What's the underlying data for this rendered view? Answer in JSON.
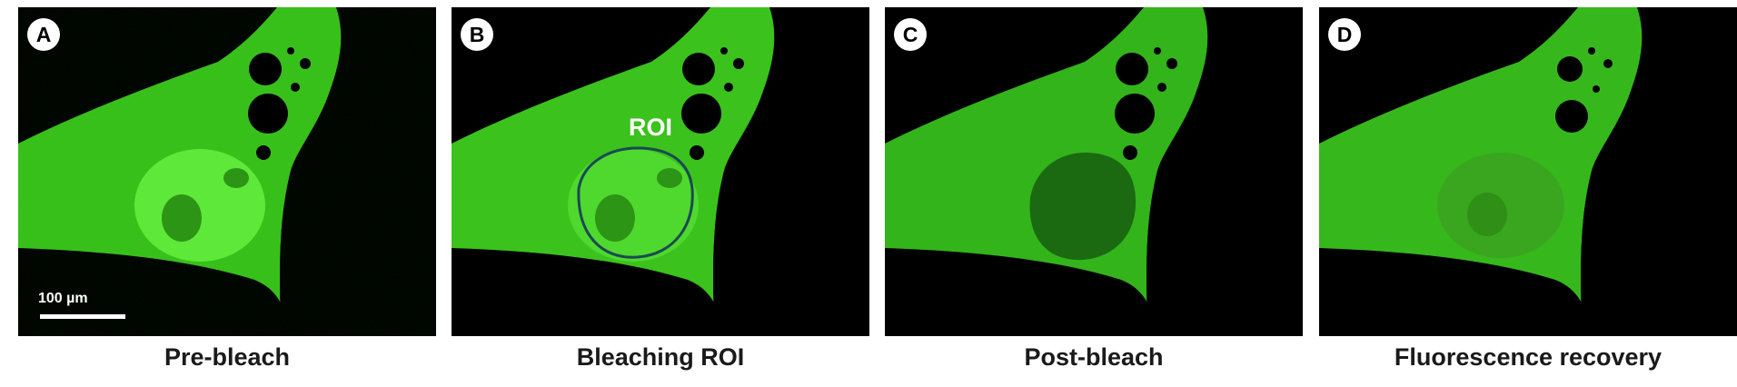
{
  "panels": [
    {
      "letter": "A",
      "caption": "Pre-bleach"
    },
    {
      "letter": "B",
      "caption": "Bleaching ROI"
    },
    {
      "letter": "C",
      "caption": "Post-bleach"
    },
    {
      "letter": "D",
      "caption": "Fluorescence recovery"
    }
  ],
  "scale_bar": {
    "label": "100 µm"
  },
  "roi": {
    "label": "ROI"
  },
  "colors": {
    "fluorescence": "#3fcc1e",
    "bleached": "#1b6a12",
    "roi_outline": "#1a4a52"
  }
}
